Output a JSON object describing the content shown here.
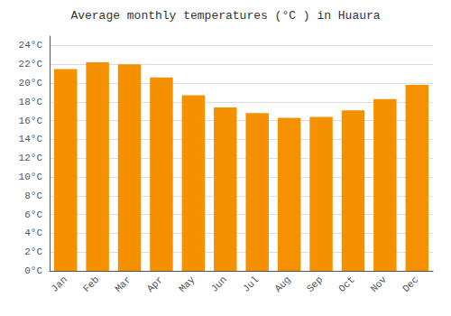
{
  "chart_data": {
    "type": "bar",
    "title": "Average monthly temperatures (°C ) in Huaura",
    "categories": [
      "Jan",
      "Feb",
      "Mar",
      "Apr",
      "May",
      "Jun",
      "Jul",
      "Aug",
      "Sep",
      "Oct",
      "Nov",
      "Dec"
    ],
    "values": [
      21.5,
      22.2,
      22.0,
      20.6,
      18.7,
      17.4,
      16.8,
      16.3,
      16.4,
      17.1,
      18.3,
      19.8
    ],
    "color": "#F59100",
    "ylim": [
      0,
      25
    ],
    "yticks": [
      {
        "value": 0,
        "label": "0°C"
      },
      {
        "value": 2,
        "label": "2°C"
      },
      {
        "value": 4,
        "label": "4°C"
      },
      {
        "value": 6,
        "label": "6°C"
      },
      {
        "value": 8,
        "label": "8°C"
      },
      {
        "value": 10,
        "label": "10°C"
      },
      {
        "value": 12,
        "label": "12°C"
      },
      {
        "value": 14,
        "label": "14°C"
      },
      {
        "value": 16,
        "label": "16°C"
      },
      {
        "value": 18,
        "label": "18°C"
      },
      {
        "value": 20,
        "label": "20°C"
      },
      {
        "value": 22,
        "label": "22°C"
      },
      {
        "value": 24,
        "label": "24°C"
      }
    ],
    "grid": true
  }
}
